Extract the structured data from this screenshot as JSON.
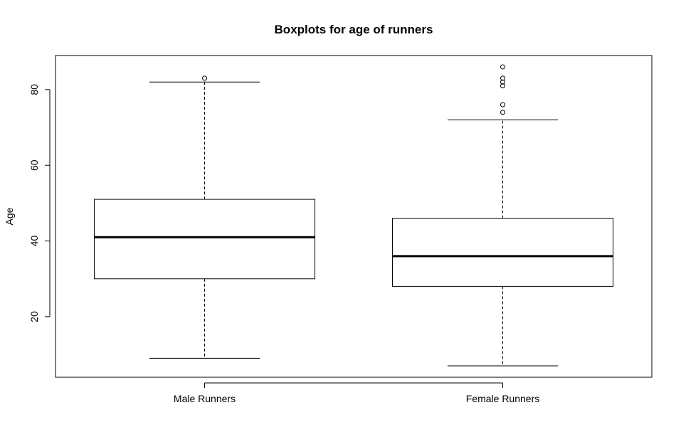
{
  "chart_data": {
    "type": "boxplot",
    "title": "Boxplots for age of runners",
    "xlabel": "",
    "ylabel": "Age",
    "ylim": [
      4,
      89
    ],
    "yticks": [
      20,
      40,
      60,
      80
    ],
    "grid": false,
    "categories": [
      "Male Runners",
      "Female Runners"
    ],
    "boxes": [
      {
        "category": "Male Runners",
        "min": 9,
        "q1": 30,
        "median": 41,
        "q3": 51,
        "max": 82,
        "outliers": [
          83
        ]
      },
      {
        "category": "Female Runners",
        "min": 7,
        "q1": 28,
        "median": 36,
        "q3": 46,
        "max": 72,
        "outliers": [
          74,
          76,
          81,
          82,
          83,
          86
        ]
      }
    ]
  }
}
